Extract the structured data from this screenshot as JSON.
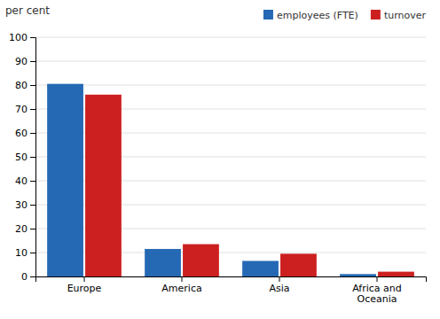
{
  "chart_data": {
    "type": "bar",
    "ylabel": "per cent",
    "categories": [
      "Europe",
      "America",
      "Asia",
      "Africa and\nOceania"
    ],
    "series": [
      {
        "name": "employees (FTE)",
        "color": "#2569b4",
        "values": [
          80.5,
          11.5,
          6.5,
          1.0
        ]
      },
      {
        "name": "turnover",
        "color": "#cc2020",
        "values": [
          76.0,
          13.5,
          9.5,
          2.0
        ]
      }
    ],
    "ylim": [
      0,
      100
    ],
    "yticks": [
      0,
      10,
      20,
      30,
      40,
      50,
      60,
      70,
      80,
      90,
      100
    ],
    "grid": true,
    "legend": "upper right"
  }
}
